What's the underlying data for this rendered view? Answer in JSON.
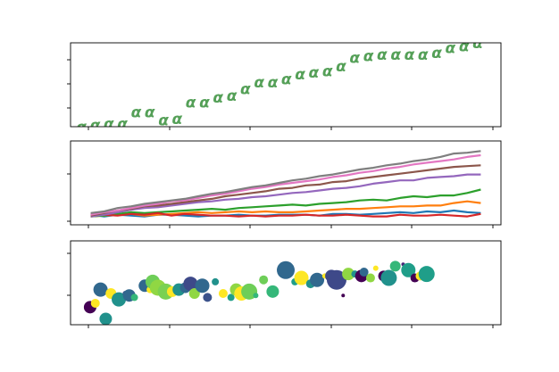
{
  "chart_data": [
    {
      "type": "scatter",
      "marker": "α",
      "marker_color": "#55a058",
      "x": [
        0,
        1,
        2,
        3,
        4,
        5,
        6,
        7,
        8,
        9,
        10,
        11,
        12,
        13,
        14,
        15,
        16,
        17,
        18,
        19,
        20,
        21,
        22,
        23,
        24,
        25,
        26,
        27,
        28,
        29
      ],
      "y": [
        1.0,
        1.1,
        1.2,
        1.2,
        1.9,
        1.9,
        1.4,
        1.5,
        2.5,
        2.5,
        2.8,
        2.9,
        3.3,
        3.7,
        3.7,
        3.9,
        4.2,
        4.3,
        4.4,
        4.7,
        5.2,
        5.3,
        5.4,
        5.4,
        5.4,
        5.4,
        5.5,
        5.8,
        5.9,
        6.1
      ],
      "xlim": [
        -0.8,
        30.7
      ],
      "ylim": [
        1.0,
        6.1
      ],
      "yticks_count": 3,
      "xticks_count": 6,
      "tick_labels_visible": false
    },
    {
      "type": "line",
      "x": [
        0,
        1,
        2,
        3,
        4,
        5,
        6,
        7,
        8,
        9,
        10,
        11,
        12,
        13,
        14,
        15,
        16,
        17,
        18,
        19,
        20,
        21,
        22,
        23,
        24,
        25,
        26,
        27,
        28,
        29
      ],
      "xlim": [
        -1.5,
        30.5
      ],
      "ylim": [
        -1,
        9
      ],
      "yticks_count": 2,
      "tick_labels_visible": false,
      "series": [
        {
          "color": "#1f77b4",
          "values": [
            0.2,
            0.0,
            0.2,
            0.1,
            0.0,
            0.2,
            0.2,
            0.1,
            0.0,
            0.1,
            0.1,
            0.2,
            0.1,
            0.1,
            0.2,
            0.2,
            0.2,
            0.1,
            0.3,
            0.3,
            0.2,
            0.3,
            0.4,
            0.5,
            0.4,
            0.6,
            0.5,
            0.7,
            0.5,
            0.4
          ]
        },
        {
          "color": "#ff7f0e",
          "values": [
            0.0,
            0.1,
            0.2,
            0.3,
            0.1,
            0.2,
            0.3,
            0.4,
            0.5,
            0.4,
            0.5,
            0.6,
            0.5,
            0.6,
            0.5,
            0.5,
            0.6,
            0.7,
            0.8,
            0.9,
            0.9,
            1.0,
            1.1,
            1.2,
            1.2,
            1.3,
            1.3,
            1.6,
            1.8,
            1.6
          ]
        },
        {
          "color": "#2ca02c",
          "values": [
            0.0,
            0.1,
            0.3,
            0.5,
            0.4,
            0.5,
            0.6,
            0.7,
            0.8,
            0.9,
            0.8,
            1.0,
            1.1,
            1.2,
            1.3,
            1.4,
            1.3,
            1.5,
            1.6,
            1.7,
            1.9,
            2.0,
            1.9,
            2.2,
            2.4,
            2.3,
            2.5,
            2.5,
            2.8,
            3.2
          ]
        },
        {
          "color": "#d62728",
          "values": [
            0.3,
            0.2,
            0.1,
            0.3,
            0.2,
            0.4,
            0.1,
            0.3,
            0.2,
            0.1,
            0.1,
            0.0,
            0.1,
            0.0,
            0.1,
            0.1,
            0.2,
            0.1,
            0.1,
            0.2,
            0.1,
            0.0,
            0.0,
            0.2,
            0.1,
            0.1,
            0.2,
            0.1,
            0.0,
            0.3
          ]
        },
        {
          "color": "#9467bd",
          "values": [
            0.0,
            0.2,
            0.5,
            0.8,
            1.0,
            1.1,
            1.3,
            1.5,
            1.7,
            1.8,
            2.0,
            2.1,
            2.3,
            2.4,
            2.6,
            2.8,
            2.9,
            3.1,
            3.3,
            3.4,
            3.6,
            3.9,
            4.1,
            4.3,
            4.3,
            4.6,
            4.7,
            4.8,
            5.0,
            5.0
          ]
        },
        {
          "color": "#8c564b",
          "values": [
            0.1,
            0.4,
            0.7,
            0.9,
            1.2,
            1.3,
            1.5,
            1.7,
            1.9,
            2.1,
            2.4,
            2.6,
            2.8,
            3.0,
            3.3,
            3.4,
            3.7,
            3.8,
            4.1,
            4.2,
            4.5,
            4.7,
            4.9,
            5.1,
            5.3,
            5.5,
            5.7,
            5.9,
            6.0,
            6.1
          ]
        },
        {
          "color": "#e377c2",
          "values": [
            0.2,
            0.5,
            0.7,
            1.0,
            1.3,
            1.5,
            1.8,
            1.9,
            2.2,
            2.5,
            2.7,
            3.0,
            3.3,
            3.5,
            3.8,
            4.0,
            4.2,
            4.4,
            4.7,
            4.9,
            5.2,
            5.4,
            5.7,
            5.9,
            6.2,
            6.4,
            6.6,
            6.8,
            7.1,
            7.3
          ]
        },
        {
          "color": "#7f7f7f",
          "values": [
            0.4,
            0.6,
            1.0,
            1.2,
            1.5,
            1.7,
            1.9,
            2.1,
            2.4,
            2.7,
            2.9,
            3.2,
            3.5,
            3.7,
            4.0,
            4.3,
            4.5,
            4.8,
            5.0,
            5.3,
            5.6,
            5.8,
            6.1,
            6.3,
            6.6,
            6.8,
            7.1,
            7.5,
            7.6,
            7.8
          ]
        }
      ]
    },
    {
      "type": "scatter",
      "xlim": [
        -1.5,
        31.5
      ],
      "ylim": [
        0.5,
        4.8
      ],
      "yticks_count": 2,
      "tick_labels_visible": false,
      "points": [
        {
          "x": 0.0,
          "y": 1.4,
          "r": 7,
          "color": "#440154"
        },
        {
          "x": 0.4,
          "y": 1.6,
          "r": 5,
          "color": "#fde725"
        },
        {
          "x": 0.8,
          "y": 2.3,
          "r": 8,
          "color": "#31688e"
        },
        {
          "x": 1.2,
          "y": 0.8,
          "r": 7,
          "color": "#21918c"
        },
        {
          "x": 1.6,
          "y": 2.1,
          "r": 6,
          "color": "#fde725"
        },
        {
          "x": 2.2,
          "y": 1.8,
          "r": 8,
          "color": "#21918c"
        },
        {
          "x": 2.7,
          "y": 2.1,
          "r": 3,
          "color": "#3b528b"
        },
        {
          "x": 3.0,
          "y": 2.0,
          "r": 7,
          "color": "#31688e"
        },
        {
          "x": 3.4,
          "y": 1.9,
          "r": 4,
          "color": "#35b779"
        },
        {
          "x": 4.2,
          "y": 2.5,
          "r": 7,
          "color": "#31688e"
        },
        {
          "x": 4.6,
          "y": 2.3,
          "r": 4,
          "color": "#fde725"
        },
        {
          "x": 4.8,
          "y": 2.7,
          "r": 8,
          "color": "#6ece58"
        },
        {
          "x": 5.2,
          "y": 2.4,
          "r": 9,
          "color": "#90d743"
        },
        {
          "x": 5.8,
          "y": 2.2,
          "r": 9,
          "color": "#7ad151"
        },
        {
          "x": 6.3,
          "y": 2.2,
          "r": 6,
          "color": "#fde725"
        },
        {
          "x": 6.8,
          "y": 2.3,
          "r": 7,
          "color": "#21918c"
        },
        {
          "x": 7.3,
          "y": 2.4,
          "r": 6,
          "color": "#31688e"
        },
        {
          "x": 7.7,
          "y": 2.6,
          "r": 8,
          "color": "#3e4989"
        },
        {
          "x": 8.0,
          "y": 2.1,
          "r": 6,
          "color": "#90d743"
        },
        {
          "x": 8.6,
          "y": 2.5,
          "r": 8,
          "color": "#31688e"
        },
        {
          "x": 9.0,
          "y": 1.9,
          "r": 5,
          "color": "#3b528b"
        },
        {
          "x": 9.6,
          "y": 2.7,
          "r": 4,
          "color": "#21918c"
        },
        {
          "x": 10.2,
          "y": 2.1,
          "r": 5,
          "color": "#fde725"
        },
        {
          "x": 10.8,
          "y": 1.9,
          "r": 4,
          "color": "#1f9e89"
        },
        {
          "x": 11.2,
          "y": 2.3,
          "r": 7,
          "color": "#90d743"
        },
        {
          "x": 11.6,
          "y": 2.1,
          "r": 8,
          "color": "#fde725"
        },
        {
          "x": 12.2,
          "y": 2.2,
          "r": 9,
          "color": "#6ece58"
        },
        {
          "x": 12.7,
          "y": 2.0,
          "r": 3,
          "color": "#35b779"
        },
        {
          "x": 13.3,
          "y": 2.8,
          "r": 5,
          "color": "#6ece58"
        },
        {
          "x": 14.0,
          "y": 2.2,
          "r": 7,
          "color": "#35b779"
        },
        {
          "x": 15.0,
          "y": 3.3,
          "r": 10,
          "color": "#31688e"
        },
        {
          "x": 15.7,
          "y": 2.7,
          "r": 4,
          "color": "#1f9e89"
        },
        {
          "x": 16.2,
          "y": 2.9,
          "r": 8,
          "color": "#fde725"
        },
        {
          "x": 16.9,
          "y": 2.6,
          "r": 5,
          "color": "#21918c"
        },
        {
          "x": 17.4,
          "y": 2.8,
          "r": 8,
          "color": "#31688e"
        },
        {
          "x": 18.0,
          "y": 3.0,
          "r": 3,
          "color": "#fde725"
        },
        {
          "x": 18.5,
          "y": 3.0,
          "r": 7,
          "color": "#3e4989"
        },
        {
          "x": 18.9,
          "y": 2.8,
          "r": 11,
          "color": "#3e4989"
        },
        {
          "x": 19.4,
          "y": 2.0,
          "r": 2,
          "color": "#440154"
        },
        {
          "x": 19.8,
          "y": 3.1,
          "r": 7,
          "color": "#90d743"
        },
        {
          "x": 20.3,
          "y": 3.1,
          "r": 4,
          "color": "#21918c"
        },
        {
          "x": 20.8,
          "y": 3.0,
          "r": 7,
          "color": "#440154"
        },
        {
          "x": 21.0,
          "y": 3.2,
          "r": 5,
          "color": "#31688e"
        },
        {
          "x": 21.5,
          "y": 2.9,
          "r": 5,
          "color": "#90d743"
        },
        {
          "x": 21.9,
          "y": 3.4,
          "r": 3,
          "color": "#fde725"
        },
        {
          "x": 22.5,
          "y": 3.0,
          "r": 6,
          "color": "#440154"
        },
        {
          "x": 22.9,
          "y": 2.9,
          "r": 9,
          "color": "#21918c"
        },
        {
          "x": 23.4,
          "y": 3.5,
          "r": 6,
          "color": "#35b779"
        },
        {
          "x": 24.0,
          "y": 3.6,
          "r": 2,
          "color": "#482878"
        },
        {
          "x": 24.4,
          "y": 3.3,
          "r": 8,
          "color": "#1f9e89"
        },
        {
          "x": 24.9,
          "y": 2.9,
          "r": 5,
          "color": "#440154"
        },
        {
          "x": 25.3,
          "y": 3.0,
          "r": 5,
          "color": "#fde725"
        },
        {
          "x": 25.8,
          "y": 3.1,
          "r": 9,
          "color": "#1f9e89"
        }
      ]
    }
  ]
}
